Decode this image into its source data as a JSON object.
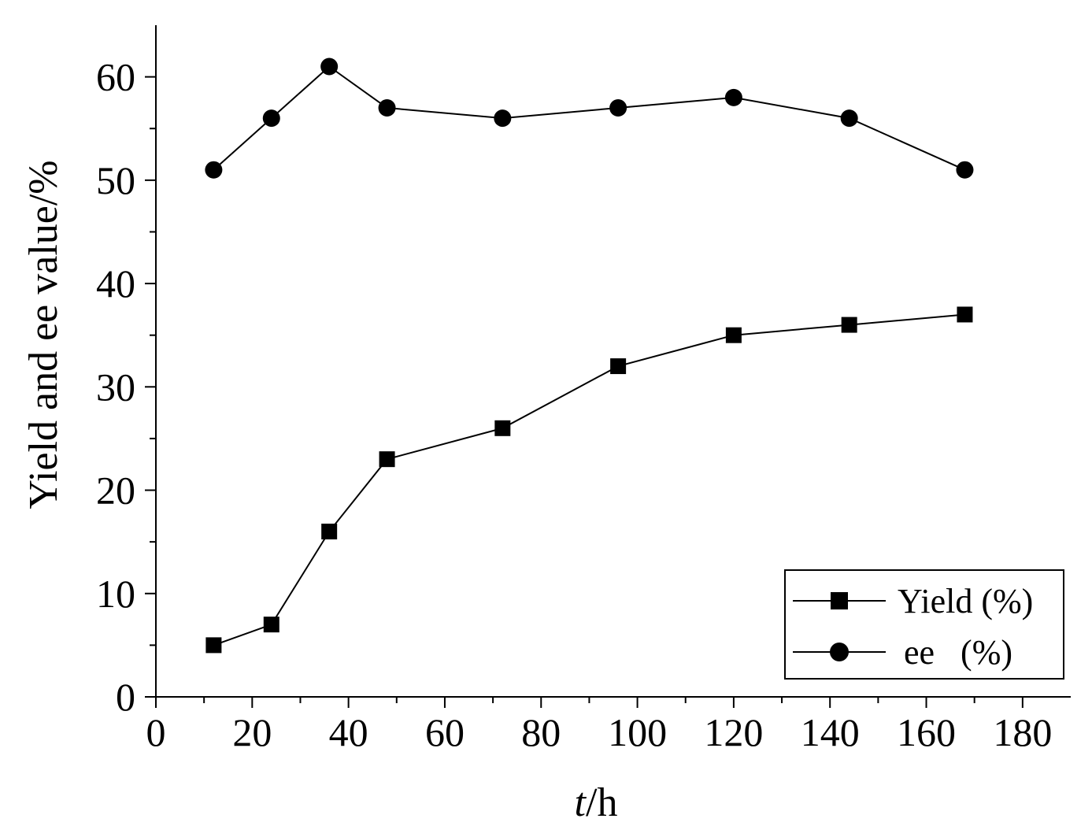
{
  "chart_data": {
    "type": "line",
    "x": [
      12,
      24,
      36,
      48,
      72,
      96,
      120,
      144,
      168
    ],
    "series": [
      {
        "name": "Yield (%)",
        "marker": "square",
        "values": [
          5,
          7,
          16,
          23,
          26,
          32,
          35,
          36,
          37
        ]
      },
      {
        "name": "ee   (%)",
        "marker": "circle",
        "values": [
          51,
          56,
          61,
          57,
          56,
          57,
          58,
          56,
          51
        ]
      }
    ],
    "xlabel_italic": "t",
    "xlabel_rest": "/h",
    "ylabel": "Yield and ee value/%",
    "xlim": [
      0,
      190
    ],
    "ylim": [
      0,
      65
    ],
    "xticks": [
      0,
      20,
      40,
      60,
      80,
      100,
      120,
      140,
      160,
      180
    ],
    "yticks": [
      0,
      10,
      20,
      30,
      40,
      50,
      60
    ],
    "legend_position": "bottom-right",
    "grid": false,
    "colors": {
      "line": "#000000",
      "marker": "#000000"
    }
  }
}
